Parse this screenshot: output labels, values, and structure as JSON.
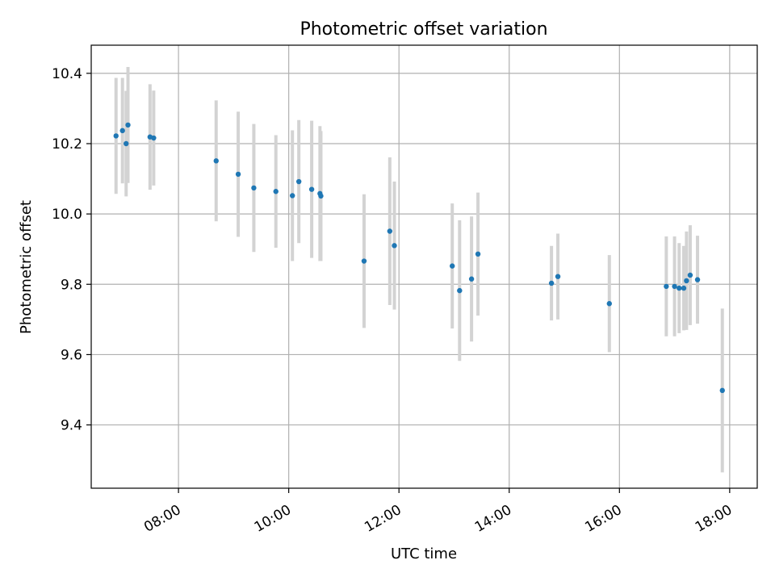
{
  "chart_data": {
    "type": "scatter",
    "title": "Photometric offset variation",
    "xlabel": "UTC time",
    "ylabel": "Photometric offset",
    "x_ticks": [
      "08:00",
      "10:00",
      "12:00",
      "14:00",
      "16:00",
      "18:00"
    ],
    "y_ticks": [
      "9.4",
      "9.6",
      "9.8",
      "10.0",
      "10.2",
      "10.4"
    ],
    "xlim": [
      "06:25",
      "18:30"
    ],
    "ylim": [
      9.22,
      10.48
    ],
    "grid": true,
    "marker_color": "#1f77b4",
    "errorbar_color": "#d3d3d3",
    "points": [
      {
        "x": "06:52",
        "y": 10.222,
        "err": 0.165
      },
      {
        "x": "06:59",
        "y": 10.237,
        "err": 0.15
      },
      {
        "x": "07:03",
        "y": 10.2,
        "err": 0.15
      },
      {
        "x": "07:05",
        "y": 10.253,
        "err": 0.165
      },
      {
        "x": "07:29",
        "y": 10.219,
        "err": 0.15
      },
      {
        "x": "07:33",
        "y": 10.216,
        "err": 0.135
      },
      {
        "x": "08:41",
        "y": 10.151,
        "err": 0.172
      },
      {
        "x": "09:05",
        "y": 10.113,
        "err": 0.178
      },
      {
        "x": "09:22",
        "y": 10.074,
        "err": 0.182
      },
      {
        "x": "09:46",
        "y": 10.064,
        "err": 0.16
      },
      {
        "x": "10:04",
        "y": 10.052,
        "err": 0.186
      },
      {
        "x": "10:11",
        "y": 10.092,
        "err": 0.175
      },
      {
        "x": "10:25",
        "y": 10.07,
        "err": 0.195
      },
      {
        "x": "10:34",
        "y": 10.058,
        "err": 0.192
      },
      {
        "x": "10:35",
        "y": 10.051,
        "err": 0.185
      },
      {
        "x": "11:22",
        "y": 9.866,
        "err": 0.19
      },
      {
        "x": "11:50",
        "y": 9.951,
        "err": 0.21
      },
      {
        "x": "11:55",
        "y": 9.91,
        "err": 0.182
      },
      {
        "x": "12:58",
        "y": 9.852,
        "err": 0.178
      },
      {
        "x": "13:06",
        "y": 9.782,
        "err": 0.2
      },
      {
        "x": "13:19",
        "y": 9.815,
        "err": 0.178
      },
      {
        "x": "13:26",
        "y": 9.886,
        "err": 0.175
      },
      {
        "x": "14:46",
        "y": 9.803,
        "err": 0.106
      },
      {
        "x": "14:53",
        "y": 9.822,
        "err": 0.122
      },
      {
        "x": "15:49",
        "y": 9.745,
        "err": 0.138
      },
      {
        "x": "16:51",
        "y": 9.794,
        "err": 0.142
      },
      {
        "x": "17:00",
        "y": 9.794,
        "err": 0.142
      },
      {
        "x": "17:05",
        "y": 9.789,
        "err": 0.128
      },
      {
        "x": "17:10",
        "y": 9.789,
        "err": 0.12
      },
      {
        "x": "17:13",
        "y": 9.81,
        "err": 0.14
      },
      {
        "x": "17:17",
        "y": 9.826,
        "err": 0.142
      },
      {
        "x": "17:25",
        "y": 9.813,
        "err": 0.125
      },
      {
        "x": "17:52",
        "y": 9.498,
        "err": 0.233
      }
    ]
  }
}
